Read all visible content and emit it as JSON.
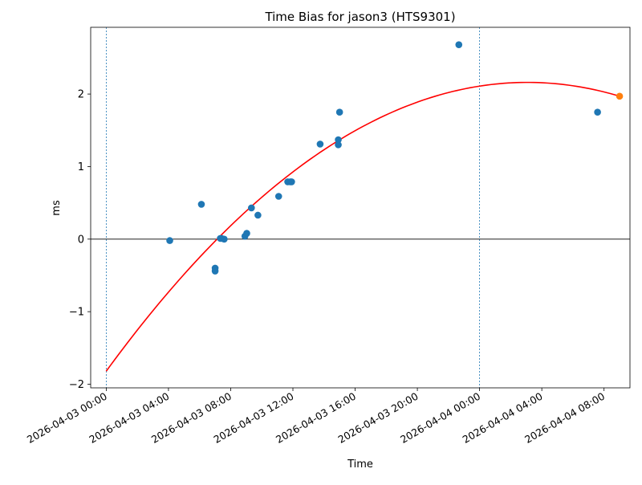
{
  "chart_data": {
    "type": "scatter",
    "title": "Time Bias for jason3 (HTS9301)",
    "xlabel": "Time",
    "ylabel": "ms",
    "xlim": [
      "2026-04-02 23:00",
      "2026-04-04 09:40"
    ],
    "ylim": [
      -2.05,
      2.92
    ],
    "x_ticks": [
      "2026-04-03 00:00",
      "2026-04-03 04:00",
      "2026-04-03 08:00",
      "2026-04-03 12:00",
      "2026-04-03 16:00",
      "2026-04-03 20:00",
      "2026-04-04 00:00",
      "2026-04-04 04:00",
      "2026-04-04 08:00"
    ],
    "y_ticks": [
      -2,
      -1,
      0,
      1,
      2
    ],
    "colors": {
      "points": "#1f77b4",
      "latest": "#ff7f0e",
      "fit": "#ff0000",
      "vlines": "#1f77b4",
      "zero": "#000000"
    },
    "grid": false,
    "vlines": [
      "2026-04-03 00:00",
      "2026-04-04 00:00"
    ],
    "hline": 0,
    "series": [
      {
        "kind": "points",
        "points": [
          {
            "x": "2026-04-03 04:05",
            "y": -0.02
          },
          {
            "x": "2026-04-03 06:07",
            "y": 0.48
          },
          {
            "x": "2026-04-03 07:00",
            "y": -0.4
          },
          {
            "x": "2026-04-03 07:00",
            "y": -0.44
          },
          {
            "x": "2026-04-03 07:20",
            "y": 0.01
          },
          {
            "x": "2026-04-03 07:25",
            "y": 0.01
          },
          {
            "x": "2026-04-03 07:35",
            "y": 0.0
          },
          {
            "x": "2026-04-03 08:55",
            "y": 0.04
          },
          {
            "x": "2026-04-03 09:02",
            "y": 0.08
          },
          {
            "x": "2026-04-03 09:20",
            "y": 0.43
          },
          {
            "x": "2026-04-03 09:45",
            "y": 0.33
          },
          {
            "x": "2026-04-03 11:05",
            "y": 0.59
          },
          {
            "x": "2026-04-03 11:40",
            "y": 0.79
          },
          {
            "x": "2026-04-03 11:50",
            "y": 0.79
          },
          {
            "x": "2026-04-03 11:55",
            "y": 0.79
          },
          {
            "x": "2026-04-03 13:45",
            "y": 1.31
          },
          {
            "x": "2026-04-03 14:55",
            "y": 1.37
          },
          {
            "x": "2026-04-03 14:55",
            "y": 1.3
          },
          {
            "x": "2026-04-03 15:00",
            "y": 1.75
          },
          {
            "x": "2026-04-03 22:40",
            "y": 2.68
          },
          {
            "x": "2026-04-04 07:35",
            "y": 1.75
          }
        ]
      },
      {
        "kind": "latest",
        "points": [
          {
            "x": "2026-04-04 09:00",
            "y": 1.97
          }
        ]
      },
      {
        "kind": "fit",
        "shape": "quadratic",
        "points": [
          {
            "x": "2026-04-03 00:00",
            "y": -1.82
          },
          {
            "x": "2026-04-04 02:45",
            "y": 2.16
          },
          {
            "x": "2026-04-04 09:00",
            "y": 1.97
          }
        ]
      }
    ]
  }
}
